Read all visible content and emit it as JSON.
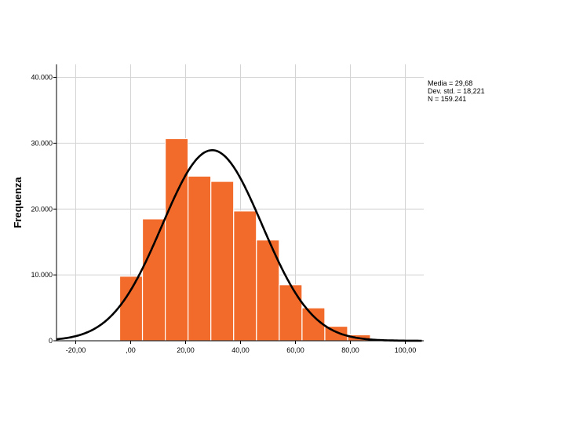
{
  "chart_data": {
    "type": "bar",
    "subtype": "histogram",
    "ylabel": "Frequenza",
    "xlabel": "",
    "xlim": [
      -27,
      107
    ],
    "ylim": [
      0,
      42000
    ],
    "x_ticks": [
      {
        "value": -20,
        "label": "-20,00"
      },
      {
        "value": 0,
        "label": ",00"
      },
      {
        "value": 20,
        "label": "20,00"
      },
      {
        "value": 40,
        "label": "40,00"
      },
      {
        "value": 60,
        "label": "60,00"
      },
      {
        "value": 80,
        "label": "80,00"
      },
      {
        "value": 100,
        "label": "100,00"
      }
    ],
    "y_ticks": [
      {
        "value": 0,
        "label": "0"
      },
      {
        "value": 10000,
        "label": "10.000"
      },
      {
        "value": 20000,
        "label": "20.000"
      },
      {
        "value": 30000,
        "label": "30.000"
      },
      {
        "value": 40000,
        "label": "40.000"
      }
    ],
    "bin_edges": [
      -4,
      4.3,
      12.6,
      20.9,
      29.2,
      37.5,
      45.8,
      54.1,
      62.4,
      70.7,
      79.0,
      87.3
    ],
    "values": [
      9800,
      18500,
      30700,
      25000,
      24200,
      19700,
      15300,
      8500,
      5000,
      2200,
      900
    ],
    "normal_curve": {
      "mean": 29.68,
      "sd": 18.221,
      "n": 159241,
      "bin_width": 8.3
    },
    "grid": true,
    "bar_color": "#f26b2a",
    "curve_color": "#000000",
    "stats_box": {
      "mean_label": "Media = 29,68",
      "sd_label": "Dev. std. = 18,221",
      "n_label": "N = 159.241"
    }
  }
}
